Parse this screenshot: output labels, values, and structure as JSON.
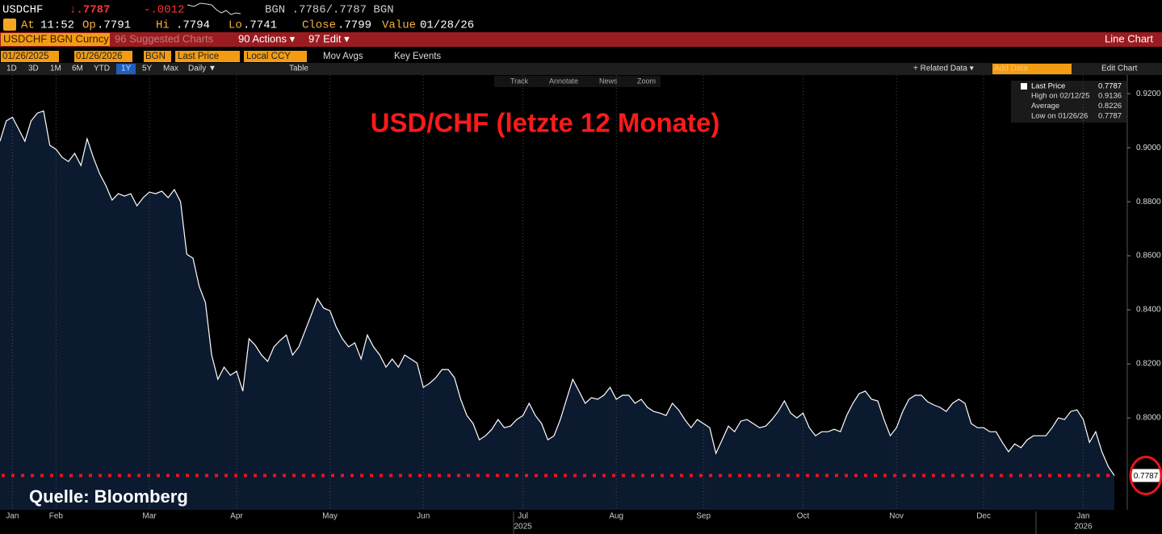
{
  "header": {
    "ticker": "USDCHF",
    "last": "↓.7787",
    "change": "-.0012",
    "quote": "BGN .7786/.7787 BGN"
  },
  "stats": [
    {
      "label": "At",
      "value": "11:52"
    },
    {
      "label": "Op",
      "value": ".7791"
    },
    {
      "label": "Hi",
      "value": ".7794"
    },
    {
      "label": "Lo",
      "value": ".7741"
    },
    {
      "label": "Close",
      "value": ".7799"
    },
    {
      "label": "Value",
      "value": "01/28/26"
    }
  ],
  "menu": {
    "security": "USDCHF BGN Curncy",
    "suggested": "96 Suggested Charts",
    "actions": "90 Actions ▾",
    "edit": "97 Edit ▾",
    "view": "Line Chart"
  },
  "controls": {
    "start": "01/26/2025",
    "end": "01/26/2026",
    "source": "BGN",
    "field": "Last Price",
    "currency": "Local CCY",
    "mov_avgs": "Mov Avgs",
    "key_events": "Key Events"
  },
  "toolbar": {
    "ranges": [
      "1D",
      "3D",
      "1M",
      "6M",
      "YTD",
      "1Y",
      "5Y",
      "Max"
    ],
    "period": "Daily ▼",
    "table": "Table",
    "related": "+ Related Data ▾",
    "add_data": "Add Data",
    "edit_chart": "Edit Chart"
  },
  "chart_tools": [
    "Track",
    "Annotate",
    "News",
    "Zoom"
  ],
  "chart_data": {
    "type": "line",
    "title": "USD/CHF (letzte 12 Monate)",
    "annotation": "Quelle: Bloomberg",
    "categories": [
      null,
      null,
      "Jan",
      null,
      null,
      null,
      null,
      null,
      null,
      "Feb",
      null,
      null,
      null,
      null,
      null,
      null,
      null,
      null,
      null,
      null,
      null,
      null,
      null,
      null,
      "Mar",
      null,
      null,
      null,
      null,
      null,
      null,
      null,
      null,
      null,
      null,
      null,
      null,
      null,
      "Apr",
      null,
      null,
      null,
      null,
      null,
      null,
      null,
      null,
      null,
      null,
      null,
      null,
      null,
      null,
      "May",
      null,
      null,
      null,
      null,
      null,
      null,
      null,
      null,
      null,
      null,
      null,
      null,
      null,
      null,
      "Jun",
      null,
      null,
      null,
      null,
      null,
      null,
      null,
      null,
      null,
      null,
      null,
      null,
      null,
      null,
      null,
      "Jul",
      null,
      null,
      null,
      null,
      null,
      null,
      null,
      null,
      null,
      null,
      null,
      null,
      null,
      null,
      "Aug",
      null,
      null,
      null,
      null,
      null,
      null,
      null,
      null,
      null,
      null,
      null,
      null,
      null,
      "Sep",
      null,
      null,
      null,
      null,
      null,
      null,
      null,
      null,
      null,
      null,
      null,
      null,
      null,
      null,
      null,
      "Oct",
      null,
      null,
      null,
      null,
      null,
      null,
      null,
      null,
      null,
      null,
      null,
      null,
      null,
      null,
      "Nov",
      null,
      null,
      null,
      null,
      null,
      null,
      null,
      null,
      null,
      null,
      null,
      null,
      null,
      "Dec",
      null,
      null,
      null,
      null,
      null,
      null,
      null,
      null,
      null,
      null,
      null,
      null,
      null,
      null,
      null,
      "Jan",
      null,
      null,
      null,
      null,
      null
    ],
    "year_labels": [
      "2025",
      "2026"
    ],
    "series": [
      {
        "name": "Last Price",
        "color": "#ffffff",
        "fill": "#0c1a30",
        "values": [
          0.9024,
          0.9099,
          0.9113,
          0.9069,
          0.9024,
          0.9099,
          0.9128,
          0.9136,
          0.9009,
          0.8994,
          0.8964,
          0.8949,
          0.8979,
          0.8934,
          0.9033,
          0.8964,
          0.8904,
          0.886,
          0.8806,
          0.883,
          0.8821,
          0.883,
          0.8785,
          0.8815,
          0.8836,
          0.883,
          0.8839,
          0.8815,
          0.8845,
          0.88,
          0.8606,
          0.8591,
          0.8487,
          0.8427,
          0.8233,
          0.8143,
          0.8188,
          0.8158,
          0.8173,
          0.8099,
          0.8293,
          0.8269,
          0.8233,
          0.8209,
          0.8263,
          0.8287,
          0.8307,
          0.8233,
          0.8263,
          0.8322,
          0.8382,
          0.8442,
          0.8406,
          0.8397,
          0.8337,
          0.8293,
          0.8263,
          0.8278,
          0.8218,
          0.8307,
          0.8263,
          0.8233,
          0.8188,
          0.8218,
          0.8188,
          0.8233,
          0.8218,
          0.8203,
          0.8113,
          0.8128,
          0.8149,
          0.8179,
          0.8179,
          0.8149,
          0.8069,
          0.8009,
          0.7979,
          0.7919,
          0.7934,
          0.7958,
          0.7994,
          0.7964,
          0.797,
          0.7994,
          0.8009,
          0.8054,
          0.8009,
          0.7979,
          0.7919,
          0.7934,
          0.7994,
          0.8069,
          0.8143,
          0.8099,
          0.8054,
          0.8075,
          0.8069,
          0.8084,
          0.8113,
          0.8069,
          0.8084,
          0.8084,
          0.8054,
          0.8069,
          0.8039,
          0.8024,
          0.8018,
          0.8009,
          0.8054,
          0.803,
          0.7994,
          0.7964,
          0.7994,
          0.7979,
          0.7964,
          0.7869,
          0.7919,
          0.797,
          0.7949,
          0.7988,
          0.7994,
          0.7979,
          0.7964,
          0.797,
          0.7994,
          0.8024,
          0.8063,
          0.8018,
          0.8,
          0.8018,
          0.7964,
          0.7934,
          0.7949,
          0.7949,
          0.7958,
          0.7949,
          0.8009,
          0.8054,
          0.809,
          0.8099,
          0.8069,
          0.8063,
          0.7994,
          0.7934,
          0.7964,
          0.8024,
          0.8069,
          0.8084,
          0.8084,
          0.806,
          0.8048,
          0.8039,
          0.8024,
          0.8054,
          0.8069,
          0.8054,
          0.7979,
          0.7964,
          0.7964,
          0.7949,
          0.7949,
          0.791,
          0.7875,
          0.7904,
          0.789,
          0.7919,
          0.7934,
          0.7934,
          0.7934,
          0.7964,
          0.8,
          0.7994,
          0.8024,
          0.803,
          0.7994,
          0.791,
          0.7949,
          0.7875,
          0.7821,
          0.7787
        ]
      }
    ],
    "last_price": 0.7787,
    "last_price_color": "#e8141c",
    "legend_stats": [
      {
        "label": "High on 02/12/25",
        "value": 0.9136
      },
      {
        "label": "Average",
        "value": 0.8226
      },
      {
        "label": "Low on 01/26/26",
        "value": 0.7787
      }
    ],
    "ylim": [
      0.766,
      0.9269
    ],
    "yticks": [
      {
        "value": 0.92,
        "label": "0.9200"
      },
      {
        "value": 0.9,
        "label": "0.9000"
      },
      {
        "value": 0.88,
        "label": "0.8800"
      },
      {
        "value": 0.86,
        "label": "0.8600"
      },
      {
        "value": 0.84,
        "label": "0.8400"
      },
      {
        "value": 0.82,
        "label": "0.8200"
      },
      {
        "value": 0.8,
        "label": "0.8000"
      }
    ],
    "grid": "x"
  }
}
